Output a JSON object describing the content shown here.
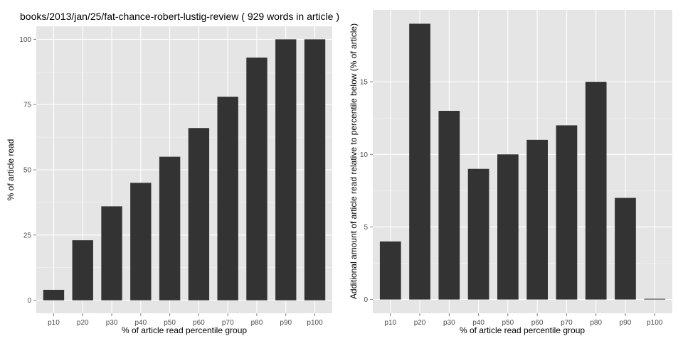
{
  "chart_data": [
    {
      "type": "bar",
      "title": "books/2013/jan/25/fat-chance-robert-lustig-review ( 929 words in article )",
      "xlabel": "% of article read percentile group",
      "ylabel": "% of article read",
      "categories": [
        "p10",
        "p20",
        "p30",
        "p40",
        "p50",
        "p60",
        "p70",
        "p80",
        "p90",
        "p100"
      ],
      "values": [
        4,
        23,
        36,
        45,
        55,
        66,
        78,
        93,
        100,
        100
      ],
      "ylim": [
        -5,
        105
      ],
      "yticks": [
        0,
        25,
        50,
        75,
        100
      ],
      "bar_color": "#333333",
      "panel_color": "#e5e5e5",
      "grid": true
    },
    {
      "type": "bar",
      "title": "",
      "xlabel": "% of article read percentile group",
      "ylabel": "Additional amount of article read relative to percentile below (% of article)",
      "categories": [
        "p10",
        "p20",
        "p30",
        "p40",
        "p50",
        "p60",
        "p70",
        "p80",
        "p90",
        "p100"
      ],
      "values": [
        4,
        19,
        13,
        9,
        10,
        11,
        12,
        15,
        7,
        0
      ],
      "ylim": [
        -0.95,
        19.95
      ],
      "yticks": [
        0,
        5,
        10,
        15
      ],
      "bar_color": "#333333",
      "panel_color": "#e5e5e5",
      "grid": true
    }
  ]
}
